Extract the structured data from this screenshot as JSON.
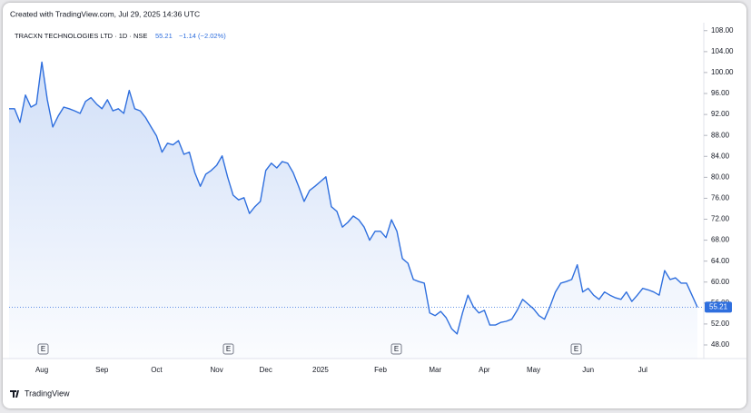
{
  "header": "Created with TradingView.com, Jul 29, 2025 14:36 UTC",
  "branding": "TradingView",
  "chart_data": {
    "type": "line",
    "title": "TRACXN TECHNOLOGIES LTD · 1D · NSE",
    "change": "−1.14 (−2.02%)",
    "color": "#2f6fde",
    "earnings_markers": [
      "E",
      "E",
      "E",
      "E"
    ],
    "categories": [
      null,
      null,
      null,
      null,
      null,
      null,
      "Aug",
      null,
      null,
      null,
      null,
      null,
      null,
      null,
      null,
      null,
      null,
      "Sep",
      null,
      null,
      null,
      null,
      null,
      null,
      null,
      null,
      null,
      "Oct",
      null,
      null,
      null,
      null,
      null,
      null,
      null,
      null,
      null,
      null,
      "Nov",
      null,
      null,
      null,
      null,
      null,
      null,
      null,
      null,
      "Dec",
      null,
      null,
      null,
      null,
      null,
      null,
      null,
      null,
      null,
      "2025",
      null,
      null,
      null,
      null,
      null,
      null,
      null,
      null,
      null,
      null,
      "Feb",
      null,
      null,
      null,
      null,
      null,
      null,
      null,
      null,
      null,
      "Mar",
      null,
      null,
      null,
      null,
      null,
      null,
      null,
      null,
      "Apr",
      null,
      null,
      null,
      null,
      null,
      null,
      null,
      null,
      "May",
      null,
      null,
      null,
      null,
      null,
      null,
      null,
      null,
      null,
      "Jun",
      null,
      null,
      null,
      null,
      null,
      null,
      null,
      null,
      null,
      "Jul",
      null,
      null,
      null,
      null,
      null,
      null,
      null,
      null,
      null,
      null
    ],
    "values": [
      93.1,
      93.1,
      90.5,
      95.7,
      93.4,
      94.0,
      102.0,
      94.8,
      89.6,
      91.7,
      93.4,
      93.1,
      92.7,
      92.2,
      94.5,
      95.2,
      94.0,
      93.1,
      94.8,
      92.7,
      93.1,
      92.2,
      96.6,
      93.1,
      92.7,
      91.4,
      89.6,
      87.9,
      84.8,
      86.5,
      86.2,
      87.0,
      84.4,
      84.8,
      80.9,
      78.3,
      80.6,
      81.3,
      82.3,
      84.1,
      80.1,
      76.6,
      75.7,
      76.1,
      73.1,
      74.4,
      75.4,
      81.3,
      82.7,
      81.8,
      83.0,
      82.7,
      80.9,
      78.3,
      75.4,
      77.5,
      78.3,
      79.2,
      80.1,
      74.4,
      73.5,
      70.5,
      71.4,
      72.6,
      71.9,
      70.5,
      68.0,
      69.7,
      69.7,
      68.5,
      71.9,
      69.7,
      64.5,
      63.6,
      60.5,
      60.1,
      59.8,
      54.1,
      53.6,
      54.4,
      53.2,
      51.1,
      50.1,
      54.1,
      57.5,
      55.3,
      54.1,
      54.6,
      51.8,
      51.8,
      52.3,
      52.5,
      52.9,
      54.6,
      56.7,
      55.8,
      54.9,
      53.6,
      52.9,
      55.3,
      58.1,
      59.8,
      60.1,
      60.5,
      63.3,
      58.1,
      58.8,
      57.5,
      56.7,
      58.1,
      57.5,
      57.0,
      56.7,
      58.1,
      56.3,
      57.5,
      58.8,
      58.5,
      58.1,
      57.5,
      62.2,
      60.5,
      60.8,
      59.8,
      59.8,
      57.5,
      55.21
    ],
    "ylim": [
      45.4,
      109
    ],
    "yticks": [
      {
        "value": 48,
        "label": "48.00"
      },
      {
        "value": 52,
        "label": "52.00"
      },
      {
        "value": 56,
        "label": "56.00"
      },
      {
        "value": 60,
        "label": "60.00"
      },
      {
        "value": 64,
        "label": "64.00"
      },
      {
        "value": 68,
        "label": "68.00"
      },
      {
        "value": 72,
        "label": "72.00"
      },
      {
        "value": 76,
        "label": "76.00"
      },
      {
        "value": 80,
        "label": "80.00"
      },
      {
        "value": 84,
        "label": "84.00"
      },
      {
        "value": 88,
        "label": "88.00"
      },
      {
        "value": 92,
        "label": "92.00"
      },
      {
        "value": 96,
        "label": "96.00"
      },
      {
        "value": 100,
        "label": "100.00"
      },
      {
        "value": 104,
        "label": "104.00"
      },
      {
        "value": 108,
        "label": "108.00"
      }
    ]
  }
}
